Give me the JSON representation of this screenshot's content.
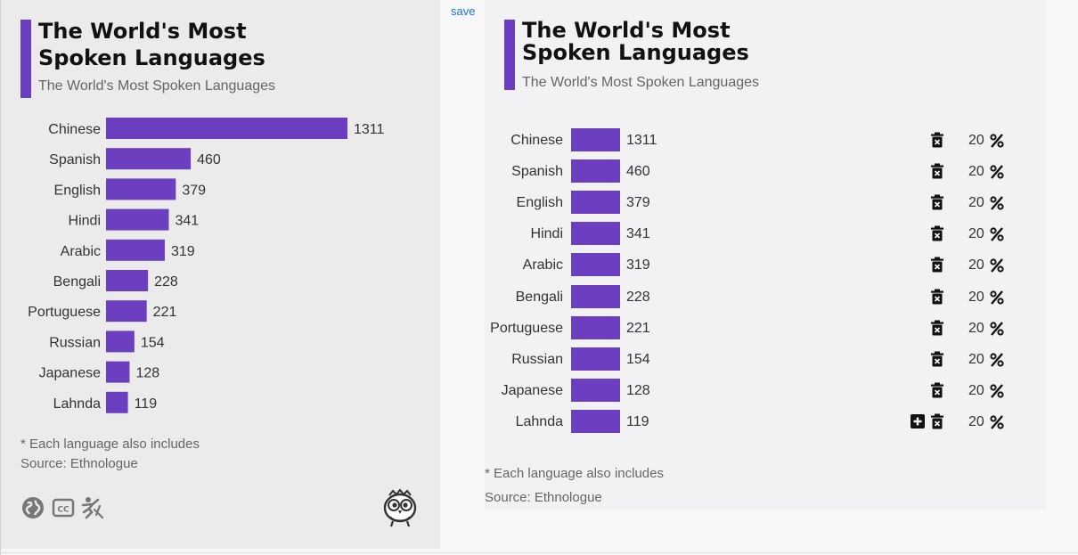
{
  "left_panel": {
    "title": "The World's Most Spoken Languages",
    "subtitle": "The World's Most Spoken Languages",
    "note": "* Each language also includes",
    "source": "Source: Ethnologue",
    "footer_icons": [
      "globe-icon",
      "cc-icon",
      "accessibility-icon"
    ],
    "mascot": "owl-mascot-icon"
  },
  "save_label": "save",
  "chart_data": {
    "type": "bar",
    "orientation": "horizontal",
    "title": "The World's Most Spoken Languages",
    "subtitle": "The World's Most Spoken Languages",
    "categories": [
      "Chinese",
      "Spanish",
      "English",
      "Hindi",
      "Arabic",
      "Bengali",
      "Portuguese",
      "Russian",
      "Japanese",
      "Lahnda"
    ],
    "values": [
      1311,
      460,
      379,
      341,
      319,
      228,
      221,
      154,
      128,
      119
    ],
    "color": "#6b3fc0",
    "xlabel": "",
    "ylabel": ""
  },
  "right_panel": {
    "title": "The World's Most Spoken Languages",
    "subtitle": "The World's Most Spoken Languages",
    "rows": [
      {
        "label": "Chinese",
        "value": "1311",
        "percent": "20"
      },
      {
        "label": "Spanish",
        "value": "460",
        "percent": "20"
      },
      {
        "label": "English",
        "value": "379",
        "percent": "20"
      },
      {
        "label": "Hindi",
        "value": "341",
        "percent": "20"
      },
      {
        "label": "Arabic",
        "value": "319",
        "percent": "20"
      },
      {
        "label": "Bengali",
        "value": "228",
        "percent": "20"
      },
      {
        "label": "Portuguese",
        "value": "221",
        "percent": "20"
      },
      {
        "label": "Russian",
        "value": "154",
        "percent": "20"
      },
      {
        "label": "Japanese",
        "value": "128",
        "percent": "20"
      },
      {
        "label": "Lahnda",
        "value": "119",
        "percent": "20"
      }
    ],
    "note": "* Each language also includes",
    "source": "Source: Ethnologue"
  },
  "colors": {
    "accent": "#6b3fc0",
    "left_background": "#ebebeb",
    "right_background": "#f2f2f4",
    "link": "#1a73e8"
  }
}
